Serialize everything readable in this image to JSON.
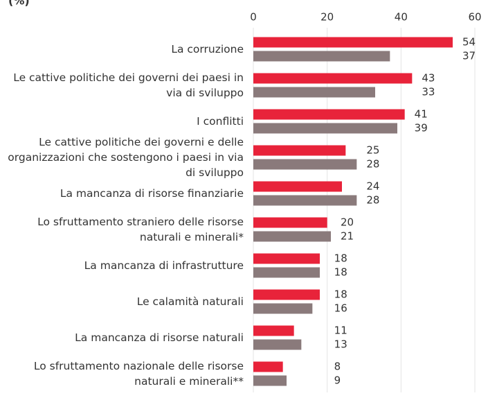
{
  "chart_data": {
    "type": "hbar",
    "title": "(%)",
    "categories": [
      "La corruzione",
      "Le cattive politiche dei governi dei paesi in via di sviluppo",
      "I conflitti",
      "Le cattive politiche dei governi e delle organizzazioni che sostengono i paesi in via di sviluppo",
      "La mancanza di risorse finanziarie",
      "Lo sfruttamento straniero delle risorse naturali e minerali*",
      "La mancanza di infrastrutture",
      "Le calamità naturali",
      "La mancanza di risorse naturali",
      "Lo sfruttamento nazionale delle risorse naturali e minerali**"
    ],
    "series": [
      {
        "color": "#e8233a",
        "values": [
          54,
          43,
          41,
          25,
          24,
          20,
          18,
          18,
          11,
          8
        ]
      },
      {
        "color": "#8a7a7b",
        "values": [
          37,
          33,
          39,
          28,
          28,
          21,
          18,
          16,
          13,
          9
        ]
      }
    ],
    "xlim": [
      0,
      60
    ],
    "xticks": [
      0,
      20,
      40,
      60
    ],
    "grid": true
  }
}
